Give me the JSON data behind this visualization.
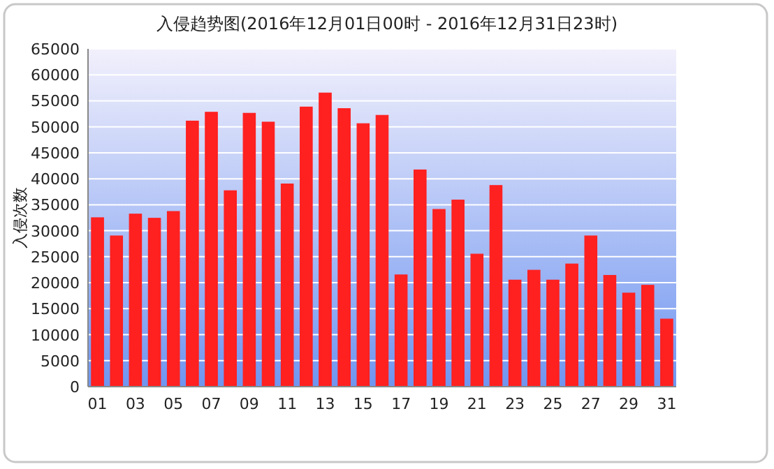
{
  "chart_data": {
    "type": "bar",
    "title": "入侵趋势图(2016年12月01日00时 - 2016年12月31日23时)",
    "ylabel": "入侵次数",
    "categories": [
      "01",
      null,
      "03",
      null,
      "05",
      null,
      "07",
      null,
      "09",
      null,
      "11",
      null,
      "13",
      null,
      "15",
      null,
      "17",
      null,
      "19",
      null,
      "21",
      null,
      "23",
      null,
      "25",
      null,
      "27",
      null,
      "29",
      null,
      "31"
    ],
    "values": [
      32500,
      29000,
      33200,
      32400,
      33700,
      51100,
      52800,
      37700,
      52600,
      50900,
      39000,
      53800,
      56500,
      53500,
      50600,
      52200,
      21500,
      41700,
      34100,
      35900,
      25500,
      38700,
      20500,
      22400,
      20500,
      23600,
      29000,
      21400,
      18000,
      19500,
      13000
    ],
    "color": "#ff2020",
    "ylim": [
      0,
      65000
    ],
    "yticks": [
      0,
      5000,
      10000,
      15000,
      20000,
      25000,
      30000,
      35000,
      40000,
      45000,
      50000,
      55000,
      60000,
      65000
    ],
    "grid": "y"
  }
}
